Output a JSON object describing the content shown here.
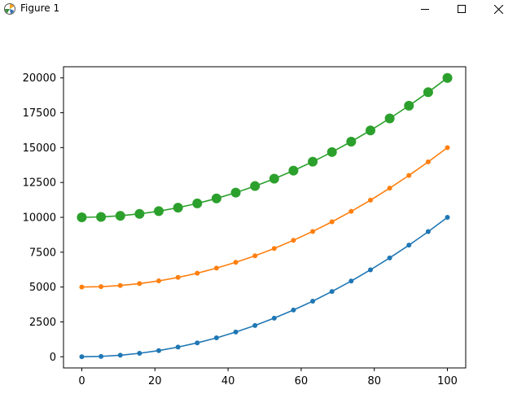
{
  "window": {
    "title": "Figure 1",
    "icons": {
      "app": "matplotlib-logo-icon",
      "minimize": "minimize-icon",
      "maximize": "maximize-icon",
      "close": "close-icon"
    }
  },
  "chart_data": {
    "type": "line",
    "title": "",
    "xlabel": "",
    "ylabel": "",
    "xlim": [
      -5,
      105
    ],
    "ylim": [
      -800,
      20800
    ],
    "xticks": [
      0,
      20,
      40,
      60,
      80,
      100
    ],
    "yticks": [
      0,
      2500,
      5000,
      7500,
      10000,
      12500,
      15000,
      17500,
      20000
    ],
    "grid": false,
    "x": [
      0,
      5.26,
      10.53,
      15.79,
      21.05,
      26.32,
      31.58,
      36.84,
      42.11,
      47.37,
      52.63,
      57.89,
      63.16,
      68.42,
      73.68,
      78.95,
      84.21,
      89.47,
      94.74,
      100
    ],
    "series": [
      {
        "color": "#1f77b4",
        "marker_size": 6,
        "values": [
          0,
          28,
          111,
          249,
          443,
          693,
          997,
          1357,
          1773,
          2244,
          2770,
          3352,
          3989,
          4681,
          5429,
          6233,
          7091,
          8006,
          8975,
          10000
        ]
      },
      {
        "color": "#ff7f0e",
        "marker_size": 6,
        "values": [
          5000,
          5028,
          5111,
          5249,
          5443,
          5693,
          5997,
          6357,
          6773,
          7244,
          7770,
          8352,
          8989,
          9681,
          10429,
          11233,
          12091,
          13006,
          13975,
          15000
        ]
      },
      {
        "color": "#2ca02c",
        "marker_size": 12,
        "values": [
          10000,
          10028,
          10111,
          10249,
          10443,
          10693,
          10997,
          11357,
          11773,
          12244,
          12770,
          13352,
          13989,
          14681,
          15429,
          16233,
          17091,
          18006,
          18975,
          20000
        ]
      }
    ]
  }
}
